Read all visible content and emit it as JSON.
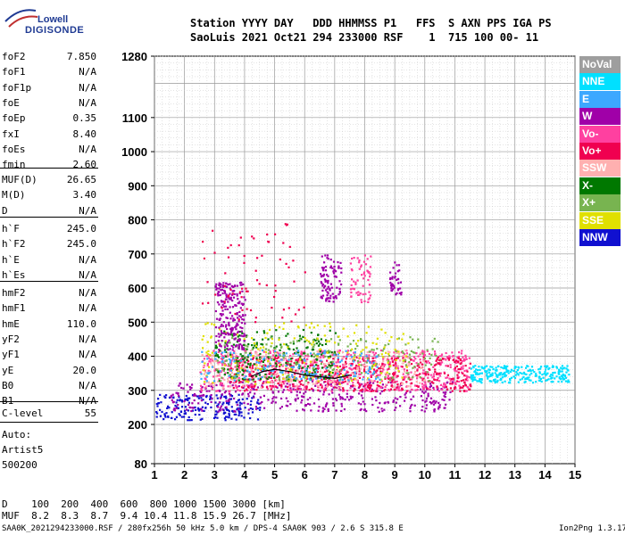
{
  "logo": {
    "line1": "Lowell",
    "line2": "DIGISONDE"
  },
  "header": {
    "line1": "Station YYYY DAY   DDD HHMMSS P1   FFS  S AXN PPS IGA PS",
    "line2": "SaoLuis 2021 Oct21 294 233000 RSF    1  715 100 00- 11"
  },
  "params": {
    "group1": [
      {
        "label": "foF2",
        "value": "7.850"
      },
      {
        "label": "foF1",
        "value": "N/A"
      },
      {
        "label": "foF1p",
        "value": "N/A"
      },
      {
        "label": "foE",
        "value": "N/A"
      },
      {
        "label": "foEp",
        "value": "0.35"
      },
      {
        "label": "fxI",
        "value": "8.40"
      },
      {
        "label": "foEs",
        "value": "N/A"
      },
      {
        "label": "fmin",
        "value": "2.60"
      }
    ],
    "group2": [
      {
        "label": "MUF(D)",
        "value": "26.65"
      },
      {
        "label": "M(D)",
        "value": "3.40"
      },
      {
        "label": "D",
        "value": "N/A"
      }
    ],
    "group3": [
      {
        "label": "h`F",
        "value": "245.0"
      },
      {
        "label": "h`F2",
        "value": "245.0"
      },
      {
        "label": "h`E",
        "value": "N/A"
      },
      {
        "label": "h`Es",
        "value": "N/A"
      }
    ],
    "group4": [
      {
        "label": "hmF2",
        "value": "N/A"
      },
      {
        "label": "hmF1",
        "value": "N/A"
      },
      {
        "label": "hmE",
        "value": "110.0"
      },
      {
        "label": "yF2",
        "value": "N/A"
      },
      {
        "label": "yF1",
        "value": "N/A"
      },
      {
        "label": "yE",
        "value": "20.0"
      },
      {
        "label": "B0",
        "value": "N/A"
      },
      {
        "label": "B1",
        "value": "N/A"
      }
    ],
    "group5": [
      {
        "label": "C-level",
        "value": "55"
      }
    ],
    "auto": [
      "Auto:",
      "Artist5",
      "500200"
    ]
  },
  "legend": [
    {
      "label": "NoVal",
      "color": "#9e9e9e"
    },
    {
      "label": "NNE",
      "color": "#00e0ff"
    },
    {
      "label": "E",
      "color": "#3ca8ff"
    },
    {
      "label": "W",
      "color": "#a000a8"
    },
    {
      "label": "Vo-",
      "color": "#ff40a0"
    },
    {
      "label": "Vo+",
      "color": "#f00050"
    },
    {
      "label": "SSW",
      "color": "#ffb0b0"
    },
    {
      "label": "X-",
      "color": "#007800"
    },
    {
      "label": "X+",
      "color": "#78b450"
    },
    {
      "label": "SSE",
      "color": "#e0e000"
    },
    {
      "label": "NNW",
      "color": "#1010d0"
    }
  ],
  "footer": {
    "line1": "D    100  200  400  600  800 1000 1500 3000 [km]",
    "line2": "MUF  8.2  8.3  8.7  9.4 10.4 11.8 15.9 26.7 [MHz]",
    "left": "SAA0K_2021294233000.RSF / 280fx256h 50 kHz 5.0 km / DPS-4 SAA0K 903 / 2.6 S 315.8 E",
    "right": "Ion2Png 1.3.17"
  },
  "chart_data": {
    "type": "scatter",
    "title": "",
    "xlabel": "",
    "ylabel": "",
    "x_unit": "MHz",
    "y_unit": "km",
    "xlim": [
      1,
      15
    ],
    "ylim": [
      80,
      1280
    ],
    "xticks": [
      1,
      2,
      3,
      4,
      5,
      6,
      7,
      8,
      9,
      10,
      11,
      12,
      13,
      14,
      15
    ],
    "yticks": [
      80,
      200,
      300,
      400,
      500,
      600,
      700,
      800,
      900,
      1000,
      1100,
      1280
    ],
    "grid": true,
    "legend_position": "right",
    "trace": {
      "name": "h'(f) trace",
      "color": "#000000",
      "x": [
        4.2,
        4.6,
        5.0,
        5.5,
        6.0,
        6.5,
        7.0,
        7.5
      ],
      "y": [
        340,
        355,
        362,
        355,
        345,
        340,
        335,
        345
      ]
    },
    "echo_regions": [
      {
        "label": "NNW",
        "color": "#1010d0",
        "x": [
          1.0,
          4.5
        ],
        "y": [
          215,
          290
        ],
        "density": 200
      },
      {
        "label": "W",
        "color": "#a000a8",
        "x": [
          1.5,
          11.0
        ],
        "y": [
          240,
          330
        ],
        "density": 380
      },
      {
        "label": "Vo-",
        "color": "#ff40a0",
        "x": [
          2.5,
          11.5
        ],
        "y": [
          300,
          420
        ],
        "density": 700
      },
      {
        "label": "Vo+",
        "color": "#f00050",
        "x": [
          3.5,
          11.5
        ],
        "y": [
          300,
          400
        ],
        "density": 450
      },
      {
        "label": "SSW",
        "color": "#ffb0b0",
        "x": [
          2.5,
          10.0
        ],
        "y": [
          310,
          420
        ],
        "density": 250
      },
      {
        "label": "X-",
        "color": "#007800",
        "x": [
          3.0,
          7.0
        ],
        "y": [
          330,
          480
        ],
        "density": 220
      },
      {
        "label": "X+",
        "color": "#78b450",
        "x": [
          3.0,
          10.5
        ],
        "y": [
          330,
          460
        ],
        "density": 200
      },
      {
        "label": "SSE",
        "color": "#e0e000",
        "x": [
          2.5,
          9.5
        ],
        "y": [
          320,
          500
        ],
        "density": 180
      },
      {
        "label": "E",
        "color": "#3ca8ff",
        "x": [
          2.5,
          8.5
        ],
        "y": [
          330,
          420
        ],
        "density": 160
      },
      {
        "label": "NNE",
        "color": "#00e0ff",
        "x": [
          11.5,
          14.8
        ],
        "y": [
          325,
          375
        ],
        "density": 260
      },
      {
        "label": "W",
        "color": "#a000a8",
        "x": [
          3.0,
          4.0
        ],
        "y": [
          420,
          620
        ],
        "density": 220
      },
      {
        "label": "W",
        "color": "#a000a8",
        "x": [
          6.5,
          7.2
        ],
        "y": [
          560,
          700
        ],
        "density": 90
      },
      {
        "label": "Vo-",
        "color": "#ff40a0",
        "x": [
          7.5,
          8.2
        ],
        "y": [
          560,
          700
        ],
        "density": 60
      },
      {
        "label": "W",
        "color": "#a000a8",
        "x": [
          8.8,
          9.2
        ],
        "y": [
          580,
          680
        ],
        "density": 40
      },
      {
        "label": "Vo+",
        "color": "#f00050",
        "x": [
          2.5,
          6.0
        ],
        "y": [
          500,
          800
        ],
        "density": 70
      }
    ]
  }
}
